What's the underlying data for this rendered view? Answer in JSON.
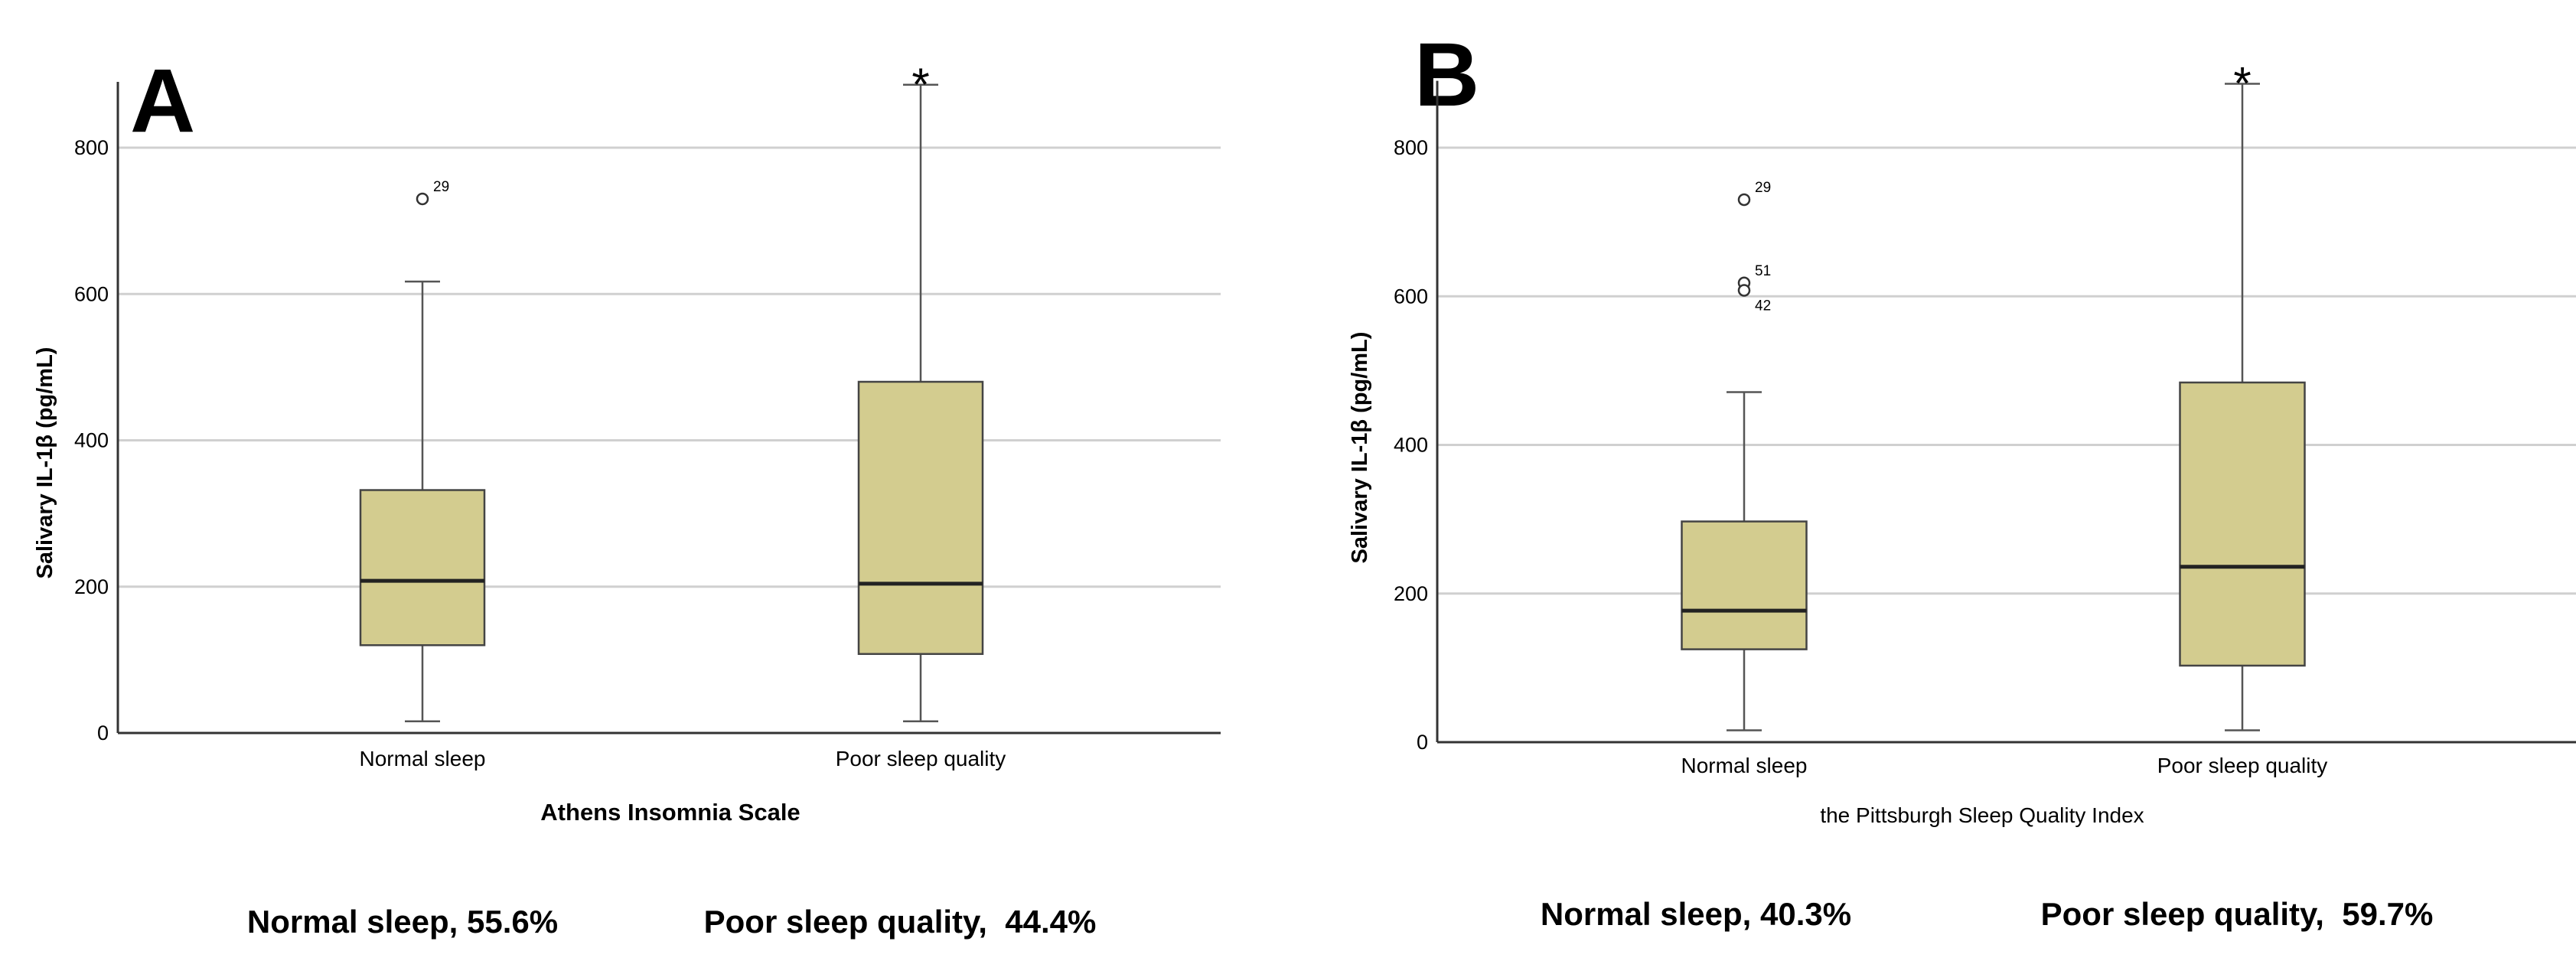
{
  "chart_data": [
    {
      "type": "box",
      "panel_label": "A",
      "xlabel": "Athens Insomnia Scale",
      "ylabel": "Salivary IL-1β (pg/mL)",
      "ylim": [
        0,
        890
      ],
      "yticks": [
        "0",
        "200",
        "400",
        "600",
        "800"
      ],
      "grid": true,
      "box_color": "#d3cc8f",
      "categories": [
        "Normal sleep",
        "Poor sleep quality"
      ],
      "boxes": [
        {
          "min": 16,
          "q1": 120,
          "median": 208,
          "q3": 332,
          "max": 617,
          "outliers": [
            {
              "value": 730,
              "label": "29"
            }
          ],
          "significance": ""
        },
        {
          "min": 16,
          "q1": 108,
          "median": 204,
          "q3": 480,
          "max": 886,
          "outliers": [],
          "significance": "*"
        }
      ],
      "summary": [
        "Normal sleep, 55.6%",
        "Poor sleep quality,  44.4%"
      ]
    },
    {
      "type": "box",
      "panel_label": "B",
      "xlabel": "the Pittsburgh Sleep Quality Index",
      "ylabel": "Salivary IL-1β (pg/mL)",
      "ylim": [
        0,
        890
      ],
      "yticks": [
        "0",
        "200",
        "400",
        "600",
        "800"
      ],
      "grid": true,
      "box_color": "#d3cc8f",
      "categories": [
        "Normal sleep",
        "Poor sleep quality"
      ],
      "boxes": [
        {
          "min": 16,
          "q1": 125,
          "median": 177,
          "q3": 297,
          "max": 471,
          "outliers": [
            {
              "value": 730,
              "label": "29"
            },
            {
              "value": 618,
              "label": "51"
            },
            {
              "value": 608,
              "label": "42"
            }
          ],
          "significance": ""
        },
        {
          "min": 16,
          "q1": 103,
          "median": 236,
          "q3": 484,
          "max": 886,
          "outliers": [],
          "significance": "*"
        }
      ],
      "summary": [
        "Normal sleep, 40.3%",
        "Poor sleep quality,  59.7%"
      ]
    }
  ]
}
